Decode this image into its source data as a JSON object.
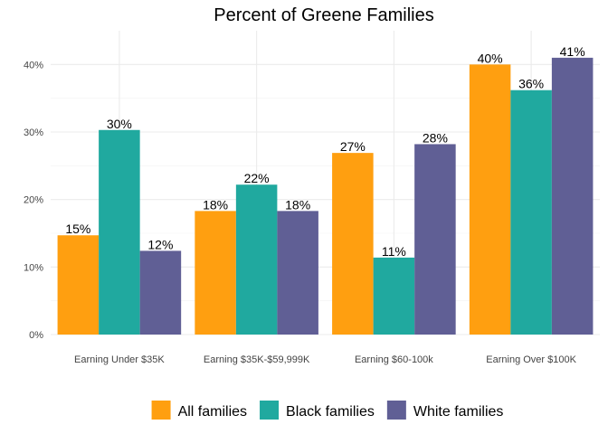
{
  "chart_data": {
    "type": "bar",
    "title": "Percent of Greene Families",
    "xlabel": "",
    "ylabel": "",
    "categories": [
      "Earning Under $35K",
      "Earning $35K-$59,999K",
      "Earning $60-100k",
      "Earning Over $100K"
    ],
    "series": [
      {
        "name": "All families",
        "color": "#FF9F10",
        "values": [
          14.7,
          18.3,
          26.9,
          40.0
        ],
        "labels": [
          "15%",
          "18%",
          "27%",
          "40%"
        ]
      },
      {
        "name": "Black families",
        "color": "#20A99F",
        "values": [
          30.3,
          22.2,
          11.4,
          36.2
        ],
        "labels": [
          "30%",
          "22%",
          "11%",
          "36%"
        ]
      },
      {
        "name": "White families",
        "color": "#605F95",
        "values": [
          12.4,
          18.3,
          28.2,
          41.0
        ],
        "labels": [
          "12%",
          "18%",
          "28%",
          "41%"
        ]
      }
    ],
    "ylim": [
      0,
      45
    ],
    "yticks": [
      0,
      10,
      20,
      30,
      40
    ],
    "ytick_labels": [
      "0%",
      "10%",
      "20%",
      "30%",
      "40%"
    ],
    "grid": true,
    "legend_position": "bottom"
  }
}
